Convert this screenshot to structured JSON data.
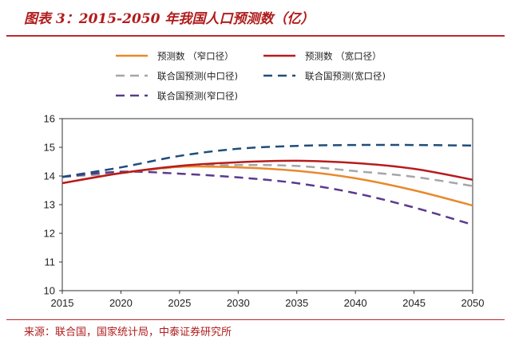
{
  "header": {
    "title": "图表 3：2015-2050 年我国人口预测数（亿）"
  },
  "footer": {
    "source": "来源：联合国，国家统计局，中泰证券研究所"
  },
  "colors": {
    "accent_red": "#c0282d"
  },
  "chart_data": {
    "type": "line",
    "title": "",
    "xlabel": "",
    "ylabel": "",
    "xlim": [
      2015,
      2050
    ],
    "ylim": [
      10,
      16
    ],
    "x_ticks": [
      "2015",
      "2020",
      "2025",
      "2030",
      "2035",
      "2040",
      "2045",
      "2050"
    ],
    "y_ticks": [
      "10",
      "11",
      "12",
      "13",
      "14",
      "15",
      "16"
    ],
    "grid": false,
    "legend_position": "top",
    "x": [
      2015,
      2020,
      2025,
      2030,
      2035,
      2040,
      2045,
      2050
    ],
    "series": [
      {
        "name": "预测数 （窄口径）",
        "color": "#e8892c",
        "style": "solid",
        "values": [
          13.75,
          14.1,
          14.32,
          14.3,
          14.18,
          13.92,
          13.5,
          12.97
        ]
      },
      {
        "name": "预测数 （宽口径）",
        "color": "#b71c1c",
        "style": "solid",
        "values": [
          13.75,
          14.1,
          14.35,
          14.48,
          14.53,
          14.45,
          14.25,
          13.87
        ]
      },
      {
        "name": "联合国预测(中口径)",
        "color": "#a6a6a6",
        "style": "dashed",
        "values": [
          13.97,
          14.1,
          14.32,
          14.38,
          14.35,
          14.17,
          13.97,
          13.65
        ]
      },
      {
        "name": "联合国预测(宽口径)",
        "color": "#1f4e79",
        "style": "dashed",
        "values": [
          13.97,
          14.3,
          14.7,
          14.95,
          15.05,
          15.08,
          15.08,
          15.06
        ]
      },
      {
        "name": "联合国预测(窄口径)",
        "color": "#5b3a8c",
        "style": "dashed",
        "values": [
          13.97,
          14.15,
          14.08,
          13.95,
          13.75,
          13.4,
          12.9,
          12.3
        ]
      }
    ]
  }
}
